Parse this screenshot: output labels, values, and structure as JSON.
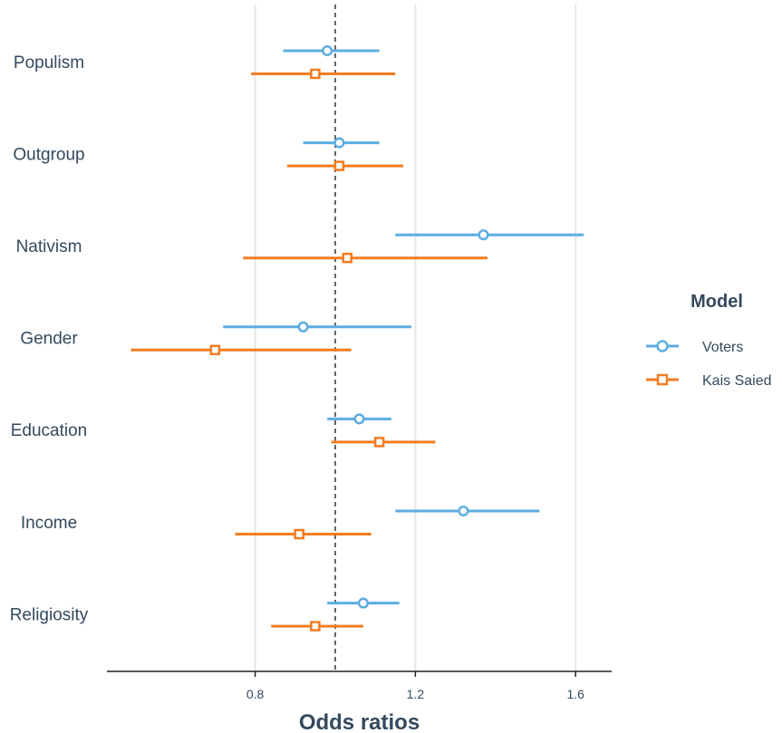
{
  "chart_data": {
    "type": "forest",
    "xlabel": "Odds ratios",
    "ylabel": "",
    "xlim": [
      0.43,
      1.69
    ],
    "xticks": [
      0.8,
      1.2,
      1.6
    ],
    "xtick_labels": [
      "0.8",
      "1.2",
      "1.6"
    ],
    "reference_line": 1.0,
    "grid": "vertical major",
    "categories": [
      "Populism",
      "Outgroup",
      "Nativism",
      "Gender",
      "Education",
      "Income",
      "Religiosity"
    ],
    "legend": {
      "title": "Model",
      "position": "right"
    },
    "series": [
      {
        "name": "Voters",
        "color": "#5dade2",
        "marker": "circle",
        "points": [
          {
            "estimate": 0.98,
            "low": 0.87,
            "high": 1.11
          },
          {
            "estimate": 1.01,
            "low": 0.92,
            "high": 1.11
          },
          {
            "estimate": 1.37,
            "low": 1.15,
            "high": 1.62
          },
          {
            "estimate": 0.92,
            "low": 0.72,
            "high": 1.19
          },
          {
            "estimate": 1.06,
            "low": 0.98,
            "high": 1.14
          },
          {
            "estimate": 1.32,
            "low": 1.15,
            "high": 1.51
          },
          {
            "estimate": 1.07,
            "low": 0.98,
            "high": 1.16
          }
        ]
      },
      {
        "name": "Kais Saied",
        "color": "#f07d23",
        "marker": "square",
        "points": [
          {
            "estimate": 0.95,
            "low": 0.79,
            "high": 1.15
          },
          {
            "estimate": 1.01,
            "low": 0.88,
            "high": 1.17
          },
          {
            "estimate": 1.03,
            "low": 0.77,
            "high": 1.38
          },
          {
            "estimate": 0.7,
            "low": 0.49,
            "high": 1.04
          },
          {
            "estimate": 1.11,
            "low": 0.99,
            "high": 1.25
          },
          {
            "estimate": 0.91,
            "low": 0.75,
            "high": 1.09
          },
          {
            "estimate": 0.95,
            "low": 0.84,
            "high": 1.07
          }
        ]
      }
    ]
  }
}
